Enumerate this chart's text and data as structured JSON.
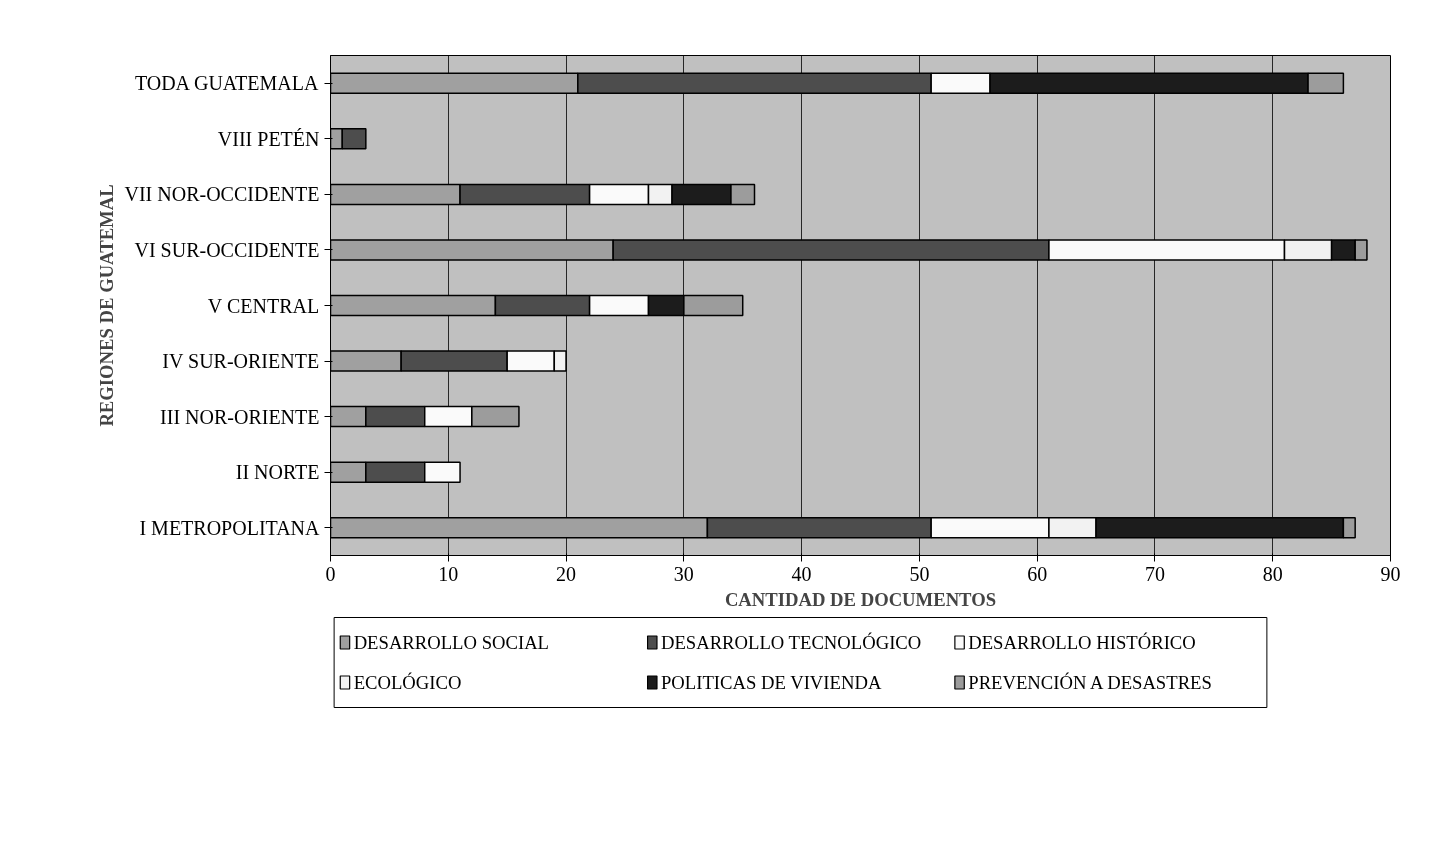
{
  "chart_data": {
    "type": "bar",
    "orientation": "horizontal",
    "stacked": true,
    "xlabel": "CANTIDAD DE DOCUMENTOS",
    "ylabel": "REGIONES DE GUATEMAL",
    "categories": [
      "TODA GUATEMALA",
      "VIII PETÉN",
      "VII NOR-OCCIDENTE",
      "VI SUR-OCCIDENTE",
      "V CENTRAL",
      "IV SUR-ORIENTE",
      "III NOR-ORIENTE",
      "II NORTE",
      "I METROPOLITANA"
    ],
    "series": [
      {
        "name": "DESARROLLO SOCIAL",
        "color": "#a0a0a0",
        "values": [
          21,
          1,
          11,
          24,
          14,
          6,
          3,
          3,
          32
        ]
      },
      {
        "name": "DESARROLLO TECNOLÓGICO",
        "color": "#4d4d4d",
        "values": [
          30,
          2,
          11,
          37,
          8,
          9,
          5,
          5,
          19
        ]
      },
      {
        "name": "DESARROLLO HISTÓRICO",
        "color": "#fafafa",
        "values": [
          5,
          0,
          5,
          20,
          5,
          4,
          4,
          3,
          10
        ]
      },
      {
        "name": "ECOLÓGICO",
        "color": "#f2f2f2",
        "values": [
          0,
          0,
          2,
          4,
          0,
          1,
          0,
          0,
          4
        ]
      },
      {
        "name": "POLITICAS DE VIVIENDA",
        "color": "#1c1c1c",
        "values": [
          27,
          0,
          5,
          2,
          3,
          0,
          0,
          0,
          21
        ]
      },
      {
        "name": "PREVENCIÓN A DESASTRES",
        "color": "#9c9c9c",
        "values": [
          3,
          0,
          2,
          1,
          5,
          0,
          4,
          0,
          1
        ]
      }
    ],
    "xlim": [
      0,
      90
    ],
    "xticks": [
      0,
      10,
      20,
      30,
      40,
      50,
      60,
      70,
      80,
      90
    ],
    "grid": "x",
    "legend": "bottom"
  }
}
